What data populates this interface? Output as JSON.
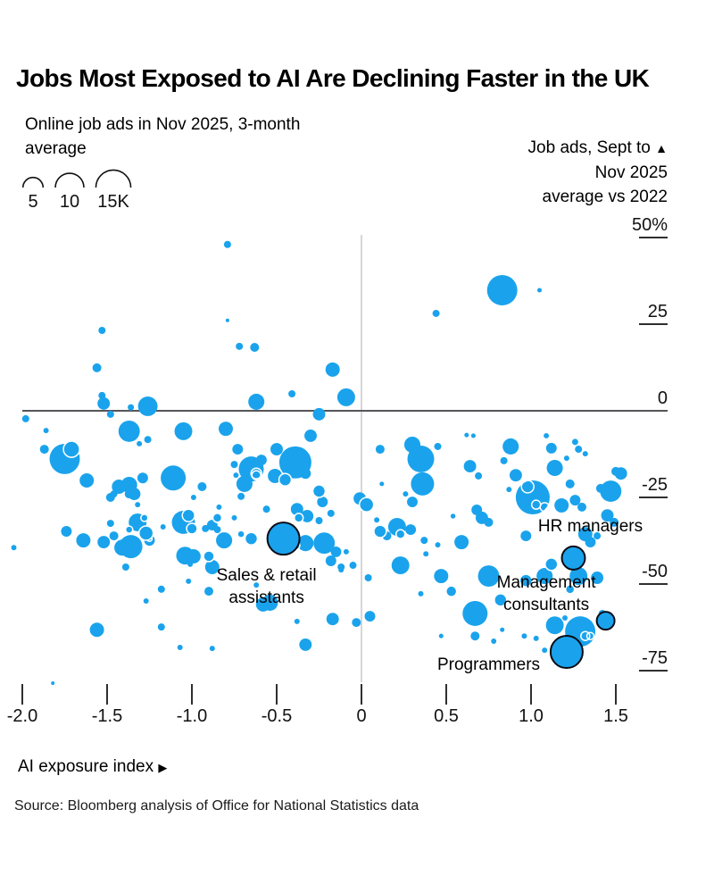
{
  "title": "Jobs Most Exposed to AI Are Declining Faster in the UK",
  "subtitle": "Online job ads in Nov 2025, 3-month average",
  "size_legend": {
    "items": [
      {
        "label": "5",
        "value": 5
      },
      {
        "label": "10",
        "value": 10
      },
      {
        "label": "15K",
        "value": 15
      }
    ]
  },
  "y_axis": {
    "label_lines": [
      "Job ads, Sept to",
      "Nov 2025",
      "average vs 2022"
    ],
    "direction_icon": "▲",
    "ticks": [
      {
        "label": "50%",
        "value": 50
      },
      {
        "label": "25",
        "value": 25
      },
      {
        "label": "0",
        "value": 0
      },
      {
        "label": "-25",
        "value": -25
      },
      {
        "label": "-50",
        "value": -50
      },
      {
        "label": "-75",
        "value": -75
      }
    ]
  },
  "x_axis": {
    "label": "AI exposure index",
    "direction_icon": "▶",
    "ticks": [
      {
        "label": "-2.0",
        "value": -2.0
      },
      {
        "label": "-1.5",
        "value": -1.5
      },
      {
        "label": "-1.0",
        "value": -1.0
      },
      {
        "label": "-0.5",
        "value": -0.5
      },
      {
        "label": "0",
        "value": 0
      },
      {
        "label": "0.5",
        "value": 0.5
      },
      {
        "label": "1.0",
        "value": 1.0
      },
      {
        "label": "1.5",
        "value": 1.5
      }
    ]
  },
  "source": "Source: Bloomberg analysis of Office for National Statistics data",
  "colors": {
    "bubble": "#1aa3ec",
    "callout_stroke": "#0b0b14",
    "zero_line": "#55555a",
    "center_line": "#c9c9c9",
    "tick": "#2f2f2f",
    "text": "#111111"
  },
  "chart_data": {
    "type": "scatter",
    "title": "Jobs Most Exposed to AI Are Declining Faster in the UK",
    "xlabel": "AI exposure index",
    "ylabel": "Job ads, Sept to Nov 2025 average vs 2022 (%)",
    "size_label": "Online job ads in Nov 2025, 3-month average (thousands)",
    "xlim": [
      -2.1,
      1.8
    ],
    "ylim": [
      -85,
      55
    ],
    "grid": false,
    "legend_position": "top-left",
    "points": [
      [
        -0.79,
        48,
        0.63
      ],
      [
        0.83,
        34.8,
        11.3
      ],
      [
        1.05,
        34.8,
        0.25
      ],
      [
        0.44,
        28.1,
        0.63
      ],
      [
        -0.79,
        26.1,
        0.16
      ],
      [
        -1.53,
        23.2,
        0.63
      ],
      [
        -0.72,
        18.6,
        0.63
      ],
      [
        -0.63,
        18.3,
        0.98
      ],
      [
        -1.56,
        12.4,
        0.98
      ],
      [
        -0.17,
        11.9,
        2.5
      ],
      [
        -0.41,
        4.9,
        0.63
      ],
      [
        -1.53,
        4.4,
        0.63
      ],
      [
        -1.52,
        2.1,
        1.9
      ],
      [
        -1.36,
        1.0,
        0.48
      ],
      [
        -1.26,
        1.3,
        4.7
      ],
      [
        -0.62,
        2.6,
        3.2
      ],
      [
        -0.25,
        -1.0,
        1.9
      ],
      [
        -1.48,
        -1.0,
        0.63
      ],
      [
        -1.98,
        -2.3,
        0.63
      ],
      [
        -0.09,
        3.9,
        3.9
      ],
      [
        -1.86,
        -5.7,
        0.35
      ],
      [
        -1.87,
        -11.1,
        0.98
      ],
      [
        -1.75,
        -13.9,
        11.3
      ],
      [
        -1.62,
        -20.1,
        2.5
      ],
      [
        -1.37,
        -5.9,
        5.6
      ],
      [
        -1.26,
        -8.3,
        0.63
      ],
      [
        -1.31,
        -9.5,
        0.35
      ],
      [
        -1.29,
        -19.4,
        1.4
      ],
      [
        -1.43,
        -21.9,
        2.5
      ],
      [
        -1.37,
        -21.4,
        3.2
      ],
      [
        -1.34,
        -24.0,
        1.9
      ],
      [
        -1.48,
        -25.0,
        0.98
      ],
      [
        -1.05,
        -5.9,
        3.9
      ],
      [
        -1.11,
        -19.4,
        7.7
      ],
      [
        -0.99,
        -25.0,
        0.35
      ],
      [
        -0.94,
        -21.9,
        0.98
      ],
      [
        -0.8,
        -5.2,
        2.5
      ],
      [
        -0.73,
        -11.1,
        1.4
      ],
      [
        -0.75,
        -15.5,
        0.63
      ],
      [
        -0.74,
        -18.6,
        0.35
      ],
      [
        -0.69,
        -21.1,
        3.2
      ],
      [
        -0.65,
        -16.8,
        7.7
      ],
      [
        -0.59,
        -14.2,
        1.4
      ],
      [
        -0.5,
        -11.1,
        1.9
      ],
      [
        -0.51,
        -18.8,
        2.5
      ],
      [
        -0.39,
        -14.9,
        12.7
      ],
      [
        -0.33,
        -18.1,
        1.4
      ],
      [
        -0.3,
        -7.2,
        1.9
      ],
      [
        -0.23,
        -26.3,
        1.4
      ],
      [
        -0.18,
        -29.6,
        0.63
      ],
      [
        0.11,
        -11.1,
        0.98
      ],
      [
        0.12,
        -21.1,
        0.25
      ],
      [
        0.3,
        -9.8,
        3.2
      ],
      [
        0.35,
        -13.9,
        8.8
      ],
      [
        0.36,
        -21.1,
        6.6
      ],
      [
        0.45,
        -10.3,
        0.63
      ],
      [
        0.26,
        -24.0,
        0.35
      ],
      [
        0.3,
        -26.3,
        1.4
      ],
      [
        0.62,
        -7.0,
        0.25
      ],
      [
        0.66,
        -7.2,
        0.25
      ],
      [
        0.64,
        -16.0,
        1.9
      ],
      [
        0.69,
        -18.8,
        0.63
      ],
      [
        0.88,
        -10.3,
        3.2
      ],
      [
        0.84,
        -14.4,
        0.63
      ],
      [
        0.91,
        -18.6,
        1.9
      ],
      [
        0.87,
        -22.7,
        0.35
      ],
      [
        1.01,
        -25.0,
        14.2
      ],
      [
        1.09,
        -7.2,
        0.35
      ],
      [
        1.12,
        -10.8,
        1.4
      ],
      [
        1.14,
        -16.5,
        3.2
      ],
      [
        1.21,
        -13.7,
        0.35
      ],
      [
        1.26,
        -9.0,
        0.48
      ],
      [
        1.28,
        -11.1,
        0.63
      ],
      [
        1.32,
        -12.4,
        0.35
      ],
      [
        1.23,
        -21.1,
        0.98
      ],
      [
        1.26,
        -25.8,
        1.4
      ],
      [
        1.18,
        -27.3,
        2.5
      ],
      [
        1.3,
        -27.8,
        0.98
      ],
      [
        1.41,
        -22.4,
        0.98
      ],
      [
        1.47,
        -23.2,
        5.6
      ],
      [
        1.5,
        -17.5,
        0.98
      ],
      [
        1.53,
        -18.1,
        1.9
      ],
      [
        -1.46,
        -24.0,
        0.63
      ],
      [
        -1.37,
        -24.0,
        0.98
      ],
      [
        -1.32,
        -27.1,
        0.35
      ],
      [
        -1.48,
        -32.5,
        0.63
      ],
      [
        -1.32,
        -32.2,
        3.9
      ],
      [
        -1.41,
        -39.5,
        3.2
      ],
      [
        -1.46,
        -36.1,
        0.98
      ],
      [
        -1.17,
        -33.5,
        0.35
      ],
      [
        -1.05,
        -32.2,
        6.6
      ],
      [
        -0.88,
        -33.0,
        1.4
      ],
      [
        -0.85,
        -34.3,
        0.63
      ],
      [
        -0.81,
        -37.4,
        3.2
      ],
      [
        -0.75,
        -30.9,
        0.35
      ],
      [
        -0.92,
        -34.0,
        0.63
      ],
      [
        -0.84,
        -27.8,
        0.35
      ],
      [
        -0.71,
        -24.7,
        0.63
      ],
      [
        -0.56,
        -28.4,
        0.63
      ],
      [
        -0.38,
        -28.4,
        1.9
      ],
      [
        -0.39,
        -38.7,
        0.98
      ],
      [
        -0.32,
        -30.4,
        1.9
      ],
      [
        -0.25,
        -31.7,
        0.63
      ],
      [
        -0.22,
        -38.2,
        5.6
      ],
      [
        -0.33,
        -38.2,
        3.2
      ],
      [
        -0.15,
        -40.7,
        1.4
      ],
      [
        -0.09,
        -40.7,
        0.35
      ],
      [
        -0.05,
        -44.6,
        0.63
      ],
      [
        -0.12,
        -45.9,
        0.35
      ],
      [
        -1.74,
        -34.8,
        1.4
      ],
      [
        -2.05,
        -39.5,
        0.35
      ],
      [
        -1.64,
        -37.4,
        2.5
      ],
      [
        -1.52,
        -37.9,
        1.9
      ],
      [
        -1.36,
        -39.2,
        6.6
      ],
      [
        -1.25,
        -37.4,
        1.4
      ],
      [
        -1.04,
        -41.8,
        3.9
      ],
      [
        -0.99,
        -42.0,
        2.5
      ],
      [
        -1.01,
        -44.3,
        0.35
      ],
      [
        -0.01,
        -25.3,
        1.9
      ],
      [
        0.09,
        -31.5,
        0.35
      ],
      [
        0.21,
        -33.5,
        3.9
      ],
      [
        0.29,
        -34.3,
        1.4
      ],
      [
        0.37,
        -37.4,
        0.63
      ],
      [
        0.45,
        -38.7,
        0.35
      ],
      [
        0.23,
        -44.6,
        3.9
      ],
      [
        0.38,
        -41.3,
        0.35
      ],
      [
        0.04,
        -48.2,
        0.63
      ],
      [
        0.15,
        -36.1,
        0.98
      ],
      [
        0.59,
        -37.9,
        2.5
      ],
      [
        0.68,
        -28.6,
        1.4
      ],
      [
        0.71,
        -30.9,
        1.9
      ],
      [
        0.75,
        -32.2,
        0.98
      ],
      [
        0.97,
        -36.1,
        1.4
      ],
      [
        1.45,
        -30.2,
        1.9
      ],
      [
        1.49,
        -32.2,
        0.98
      ],
      [
        1.08,
        -47.7,
        3.2
      ],
      [
        1.32,
        -35.6,
        2.5
      ],
      [
        1.35,
        -37.9,
        1.4
      ],
      [
        1.39,
        -36.1,
        0.63
      ],
      [
        0.47,
        -47.7,
        2.5
      ],
      [
        0.67,
        -58.5,
        7.7
      ],
      [
        0.75,
        -47.7,
        5.6
      ],
      [
        1.28,
        -47.7,
        3.9
      ],
      [
        1.39,
        -48.2,
        1.9
      ],
      [
        1.42,
        -58.5,
        0.63
      ],
      [
        1.29,
        -63.7,
        11.3
      ],
      [
        1.14,
        -61.9,
        3.9
      ],
      [
        1.03,
        -65.7,
        0.35
      ],
      [
        0.96,
        -65.0,
        0.35
      ],
      [
        0.83,
        -63.2,
        0.25
      ],
      [
        0.78,
        -66.5,
        0.35
      ],
      [
        0.67,
        -65.0,
        0.98
      ],
      [
        0.47,
        -65.0,
        0.25
      ],
      [
        1.08,
        -69.1,
        0.35
      ],
      [
        1.2,
        -59.8,
        0.35
      ],
      [
        -1.39,
        -45.1,
        0.63
      ],
      [
        -1.18,
        -51.5,
        0.63
      ],
      [
        -1.27,
        -54.9,
        0.35
      ],
      [
        -1.56,
        -63.2,
        2.5
      ],
      [
        -1.18,
        -62.4,
        0.63
      ],
      [
        -1.07,
        -68.3,
        0.35
      ],
      [
        -1.02,
        -49.2,
        0.35
      ],
      [
        -0.88,
        -68.6,
        0.35
      ],
      [
        -0.62,
        -50.3,
        0.35
      ],
      [
        -0.54,
        -55.4,
        3.2
      ],
      [
        -0.18,
        -43.3,
        1.4
      ],
      [
        -0.12,
        -45.1,
        0.63
      ],
      [
        -0.38,
        -60.8,
        0.35
      ],
      [
        -0.33,
        -67.5,
        1.9
      ],
      [
        -0.17,
        -60.1,
        1.9
      ],
      [
        -0.03,
        -61.1,
        0.98
      ],
      [
        0.05,
        -59.3,
        1.4
      ],
      [
        0.35,
        -52.8,
        0.35
      ],
      [
        -1.82,
        -78.6,
        0.16
      ],
      [
        -0.9,
        -52.1,
        0.98
      ],
      [
        -0.88,
        -45.1,
        2.5
      ],
      [
        -0.58,
        -55.9,
        2.5
      ]
    ],
    "ring_points": [
      [
        -1.71,
        -11.1,
        3.2
      ],
      [
        -0.62,
        -18.6,
        0.98
      ],
      [
        -0.45,
        -19.9,
        1.9
      ],
      [
        -0.25,
        -23.2,
        1.9
      ],
      [
        -1.37,
        -34.3,
        0.63
      ],
      [
        -1.28,
        -30.9,
        0.63
      ],
      [
        -1.25,
        -36.9,
        0.35
      ],
      [
        -1.02,
        -30.2,
        1.9
      ],
      [
        -1.0,
        -34.0,
        1.4
      ],
      [
        -0.9,
        -42.0,
        1.4
      ],
      [
        -0.65,
        -36.9,
        1.9
      ],
      [
        -0.71,
        -35.6,
        0.63
      ],
      [
        -0.85,
        -30.9,
        0.98
      ],
      [
        -0.37,
        -30.9,
        0.98
      ],
      [
        -1.27,
        -35.3,
        2.5
      ],
      [
        0.03,
        -27.1,
        2.5
      ],
      [
        0.11,
        -34.8,
        1.9
      ],
      [
        0.23,
        -35.6,
        0.98
      ],
      [
        0.54,
        -30.4,
        0.48
      ],
      [
        1.12,
        -44.3,
        1.9
      ],
      [
        0.53,
        -52.1,
        1.4
      ],
      [
        0.82,
        -54.6,
        1.9
      ],
      [
        0.97,
        -49.0,
        1.9
      ],
      [
        1.23,
        -51.5,
        0.98
      ]
    ],
    "inner_rings": [
      [
        0.98,
        -21.9,
        1.9
      ],
      [
        1.03,
        -27.1,
        0.98
      ],
      [
        1.08,
        -27.8,
        0.98
      ],
      [
        1.32,
        -65.0,
        0.98
      ],
      [
        1.35,
        -65.0,
        0.63
      ],
      [
        -0.44,
        -37.9,
        2.5
      ],
      [
        -0.39,
        -38.9,
        0.98
      ],
      [
        -0.62,
        -18.1,
        1.4
      ]
    ],
    "labeled_points": [
      {
        "name": "Sales & retail assistants",
        "x": -0.46,
        "y": -36.9,
        "size_k": 12.7
      },
      {
        "name": "HR managers",
        "x": 1.25,
        "y": -42.5,
        "size_k": 6.6
      },
      {
        "name": "Management consultants",
        "x": 1.44,
        "y": -60.6,
        "size_k": 3.9
      },
      {
        "name": "Programmers",
        "x": 1.21,
        "y": -69.6,
        "size_k": 12.7
      }
    ],
    "annotations": [
      {
        "name": "sales-retail-label",
        "x": -0.56,
        "lines": [
          {
            "text": "Sales & retail",
            "y": -47.7
          },
          {
            "text": "assistants",
            "y": -54.1
          }
        ]
      },
      {
        "name": "hr-managers-label",
        "x": 1.35,
        "lines": [
          {
            "text": "HR managers",
            "y": -33.5
          }
        ]
      },
      {
        "name": "management-consultants-label",
        "x": 1.09,
        "lines": [
          {
            "text": "Management",
            "y": -49.7
          },
          {
            "text": "consultants",
            "y": -56.2
          }
        ]
      },
      {
        "name": "programmers-label",
        "x": 0.75,
        "lines": [
          {
            "text": "Programmers",
            "y": -73.5
          }
        ]
      }
    ]
  }
}
